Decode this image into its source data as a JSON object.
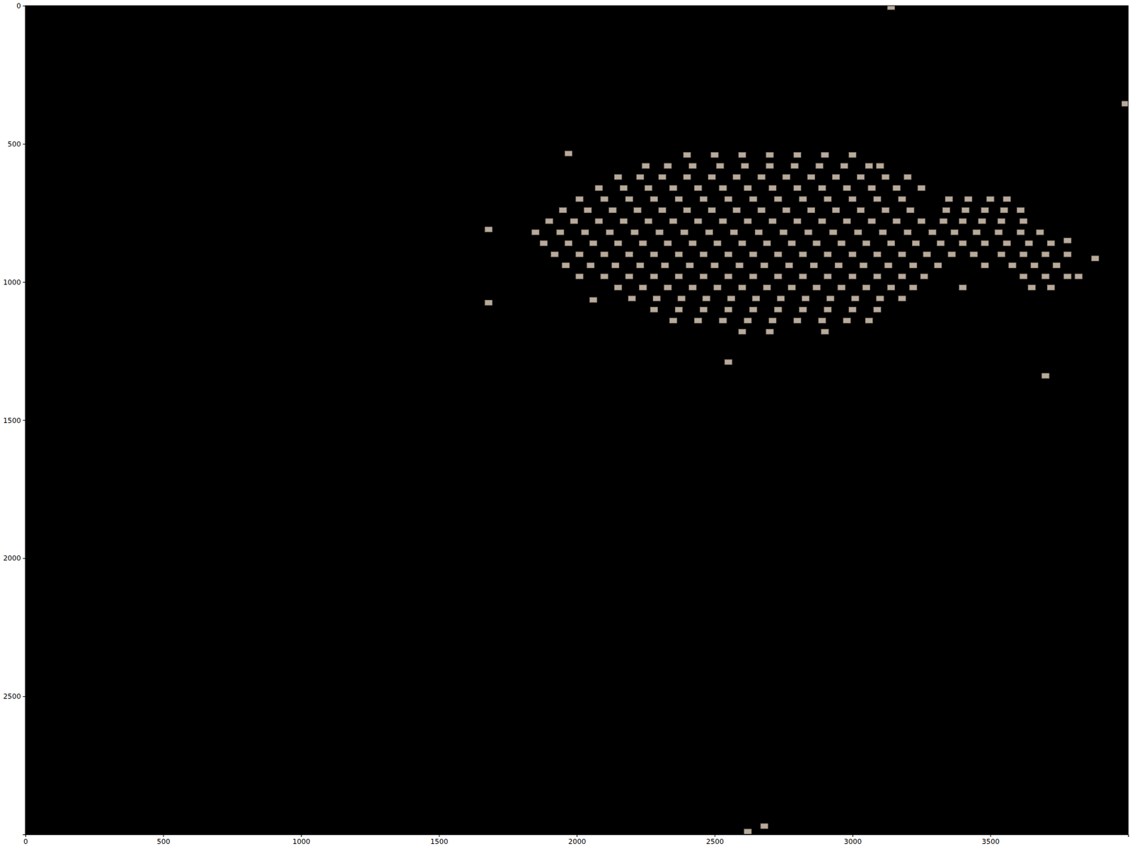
{
  "chart_data": {
    "type": "scatter",
    "marker": "square",
    "color": "#b9ab9b",
    "grid": false,
    "xlim": [
      0,
      4000
    ],
    "ylim": [
      3000,
      0
    ],
    "xticks": [
      0,
      500,
      1000,
      1500,
      2000,
      2500,
      3000,
      3500
    ],
    "yticks": [
      0,
      500,
      1000,
      1500,
      2000,
      2500
    ],
    "x": [
      2400,
      2500,
      2600,
      2700,
      2800,
      2900,
      3000,
      2250,
      2330,
      2420,
      2520,
      2610,
      2700,
      2790,
      2880,
      2970,
      3060,
      3100,
      2150,
      2230,
      2310,
      2400,
      2490,
      2580,
      2670,
      2760,
      2850,
      2940,
      3030,
      3120,
      3200,
      2080,
      2170,
      2260,
      2350,
      2440,
      2530,
      2620,
      2710,
      2800,
      2890,
      2980,
      3070,
      3160,
      3250,
      2010,
      2100,
      2190,
      2280,
      2370,
      2460,
      2550,
      2640,
      2730,
      2820,
      2910,
      3000,
      3090,
      3180,
      3350,
      3420,
      3500,
      3560,
      1950,
      2040,
      2130,
      2220,
      2310,
      2400,
      2490,
      2580,
      2670,
      2760,
      2850,
      2940,
      3030,
      3120,
      3210,
      3340,
      3410,
      3480,
      3550,
      3610,
      1900,
      1990,
      2080,
      2170,
      2260,
      2350,
      2440,
      2530,
      2620,
      2710,
      2800,
      2890,
      2980,
      3070,
      3160,
      3250,
      3330,
      3400,
      3470,
      3540,
      3620,
      1850,
      1940,
      2030,
      2120,
      2210,
      2300,
      2390,
      2480,
      2570,
      2660,
      2750,
      2840,
      2930,
      3020,
      3110,
      3200,
      3290,
      3370,
      3450,
      3530,
      3610,
      3680,
      1880,
      1970,
      2060,
      2150,
      2240,
      2330,
      2420,
      2510,
      2600,
      2690,
      2780,
      2870,
      2960,
      3050,
      3140,
      3230,
      3320,
      3400,
      3480,
      3560,
      3640,
      3720,
      1920,
      2010,
      2100,
      2190,
      2280,
      2370,
      2460,
      2550,
      2640,
      2730,
      2820,
      2910,
      3000,
      3090,
      3180,
      3270,
      3360,
      3440,
      3540,
      3620,
      3700,
      3780,
      1960,
      2050,
      2140,
      2230,
      2320,
      2410,
      2500,
      2590,
      2680,
      2770,
      2860,
      2950,
      3040,
      3130,
      3220,
      3310,
      3480,
      3580,
      3660,
      3740,
      2010,
      2100,
      2190,
      2280,
      2370,
      2460,
      2550,
      2640,
      2730,
      2820,
      2910,
      3000,
      3090,
      3180,
      3260,
      3620,
      3700,
      3780,
      3820,
      2150,
      2240,
      2330,
      2420,
      2510,
      2600,
      2690,
      2780,
      2870,
      2960,
      3050,
      3140,
      3220,
      3400,
      3650,
      3720,
      2200,
      2290,
      2380,
      2470,
      2560,
      2650,
      2740,
      2830,
      2920,
      3010,
      3100,
      3180,
      2280,
      2370,
      2460,
      2550,
      2640,
      2730,
      2820,
      2910,
      3000,
      3090,
      2350,
      2440,
      2530,
      2620,
      2710,
      2800,
      2890,
      2980,
      3060,
      2600,
      2700,
      2900,
      1680,
      1680,
      1970,
      2060,
      2550,
      3700,
      3140,
      3990,
      2620,
      2680,
      3880,
      3780
    ],
    "values": [
      540,
      540,
      540,
      540,
      540,
      540,
      540,
      580,
      580,
      580,
      580,
      580,
      580,
      580,
      580,
      580,
      580,
      580,
      620,
      620,
      620,
      620,
      620,
      620,
      620,
      620,
      620,
      620,
      620,
      620,
      620,
      660,
      660,
      660,
      660,
      660,
      660,
      660,
      660,
      660,
      660,
      660,
      660,
      660,
      660,
      700,
      700,
      700,
      700,
      700,
      700,
      700,
      700,
      700,
      700,
      700,
      700,
      700,
      700,
      700,
      700,
      700,
      700,
      740,
      740,
      740,
      740,
      740,
      740,
      740,
      740,
      740,
      740,
      740,
      740,
      740,
      740,
      740,
      740,
      740,
      740,
      740,
      740,
      780,
      780,
      780,
      780,
      780,
      780,
      780,
      780,
      780,
      780,
      780,
      780,
      780,
      780,
      780,
      780,
      780,
      780,
      780,
      780,
      780,
      820,
      820,
      820,
      820,
      820,
      820,
      820,
      820,
      820,
      820,
      820,
      820,
      820,
      820,
      820,
      820,
      820,
      820,
      820,
      820,
      820,
      820,
      860,
      860,
      860,
      860,
      860,
      860,
      860,
      860,
      860,
      860,
      860,
      860,
      860,
      860,
      860,
      860,
      860,
      860,
      860,
      860,
      860,
      860,
      900,
      900,
      900,
      900,
      900,
      900,
      900,
      900,
      900,
      900,
      900,
      900,
      900,
      900,
      900,
      900,
      900,
      900,
      900,
      900,
      900,
      900,
      940,
      940,
      940,
      940,
      940,
      940,
      940,
      940,
      940,
      940,
      940,
      940,
      940,
      940,
      940,
      940,
      940,
      940,
      940,
      940,
      980,
      980,
      980,
      980,
      980,
      980,
      980,
      980,
      980,
      980,
      980,
      980,
      980,
      980,
      980,
      980,
      980,
      980,
      980,
      1020,
      1020,
      1020,
      1020,
      1020,
      1020,
      1020,
      1020,
      1020,
      1020,
      1020,
      1020,
      1020,
      1020,
      1020,
      1020,
      1060,
      1060,
      1060,
      1060,
      1060,
      1060,
      1060,
      1060,
      1060,
      1060,
      1060,
      1060,
      1100,
      1100,
      1100,
      1100,
      1100,
      1100,
      1100,
      1100,
      1100,
      1100,
      1140,
      1140,
      1140,
      1140,
      1140,
      1140,
      1140,
      1140,
      1140,
      1180,
      1180,
      1180,
      810,
      1075,
      535,
      1065,
      1290,
      1340,
      5,
      355,
      2990,
      2970,
      915,
      850
    ]
  }
}
